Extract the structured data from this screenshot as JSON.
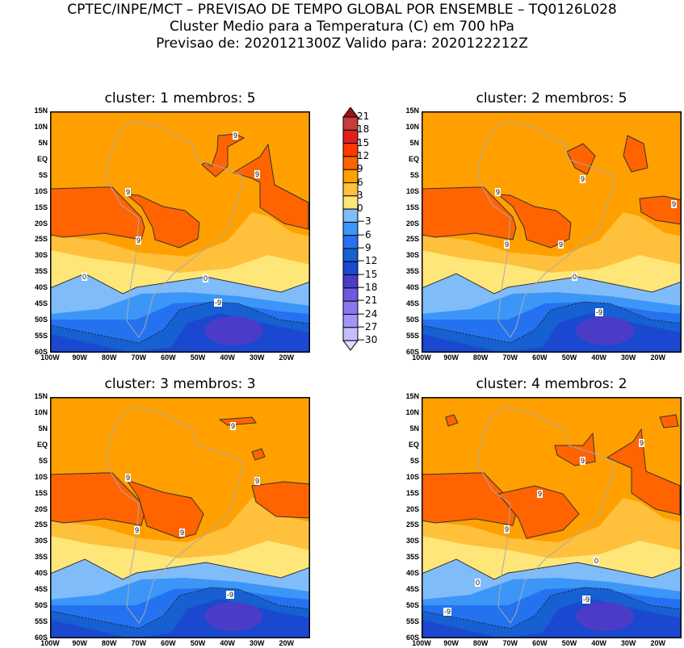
{
  "title": {
    "line1": "CPTEC/INPE/MCT – PREVISAO DE TEMPO GLOBAL POR ENSEMBLE – TQ0126L028",
    "line2": "Cluster Medio para a Temperatura (C) em 700 hPa",
    "line3": "Previsao de: 2020121300Z    Valido para: 2020122212Z"
  },
  "lat_labels": [
    "15N",
    "10N",
    "5N",
    "EQ",
    "5S",
    "10S",
    "15S",
    "20S",
    "25S",
    "30S",
    "35S",
    "40S",
    "45S",
    "50S",
    "55S",
    "60S"
  ],
  "lon_labels": [
    "100W",
    "90W",
    "80W",
    "70W",
    "60W",
    "50W",
    "40W",
    "30W",
    "20W"
  ],
  "panels": [
    {
      "title": "cluster: 1   membros: 5",
      "contour_labels": [
        "9",
        "9",
        "9",
        "9",
        "0",
        "0",
        "-9"
      ]
    },
    {
      "title": "cluster: 2   membros: 5",
      "contour_labels": [
        "9",
        "9",
        "9",
        "9",
        "9",
        "0",
        "-9"
      ]
    },
    {
      "title": "cluster: 3   membros: 3",
      "contour_labels": [
        "9",
        "9",
        "9",
        "9",
        "9",
        "-9"
      ]
    },
    {
      "title": "cluster: 4   membros: 2",
      "contour_labels": [
        "9",
        "9",
        "9",
        "9",
        "0",
        "0",
        "-9",
        "-9"
      ]
    }
  ],
  "colorbar": {
    "labels": [
      "21",
      "18",
      "15",
      "12",
      "9",
      "6",
      "3",
      "0",
      "−3",
      "−6",
      "−9",
      "−12",
      "−15",
      "−18",
      "−21",
      "−24",
      "−27",
      "−30"
    ],
    "colors": [
      "#C83C3C",
      "#E01E1E",
      "#FF3A00",
      "#FF6400",
      "#FFA000",
      "#FFC03C",
      "#FFE678",
      "#80BCFA",
      "#3C96F8",
      "#2472F0",
      "#1660D2",
      "#1A48D0",
      "#4B3CC8",
      "#6E5AE0",
      "#8878F0",
      "#A096FA",
      "#C4BEFF"
    ],
    "top_color": "#A01010",
    "bottom_color": "#DCDCFF"
  }
}
